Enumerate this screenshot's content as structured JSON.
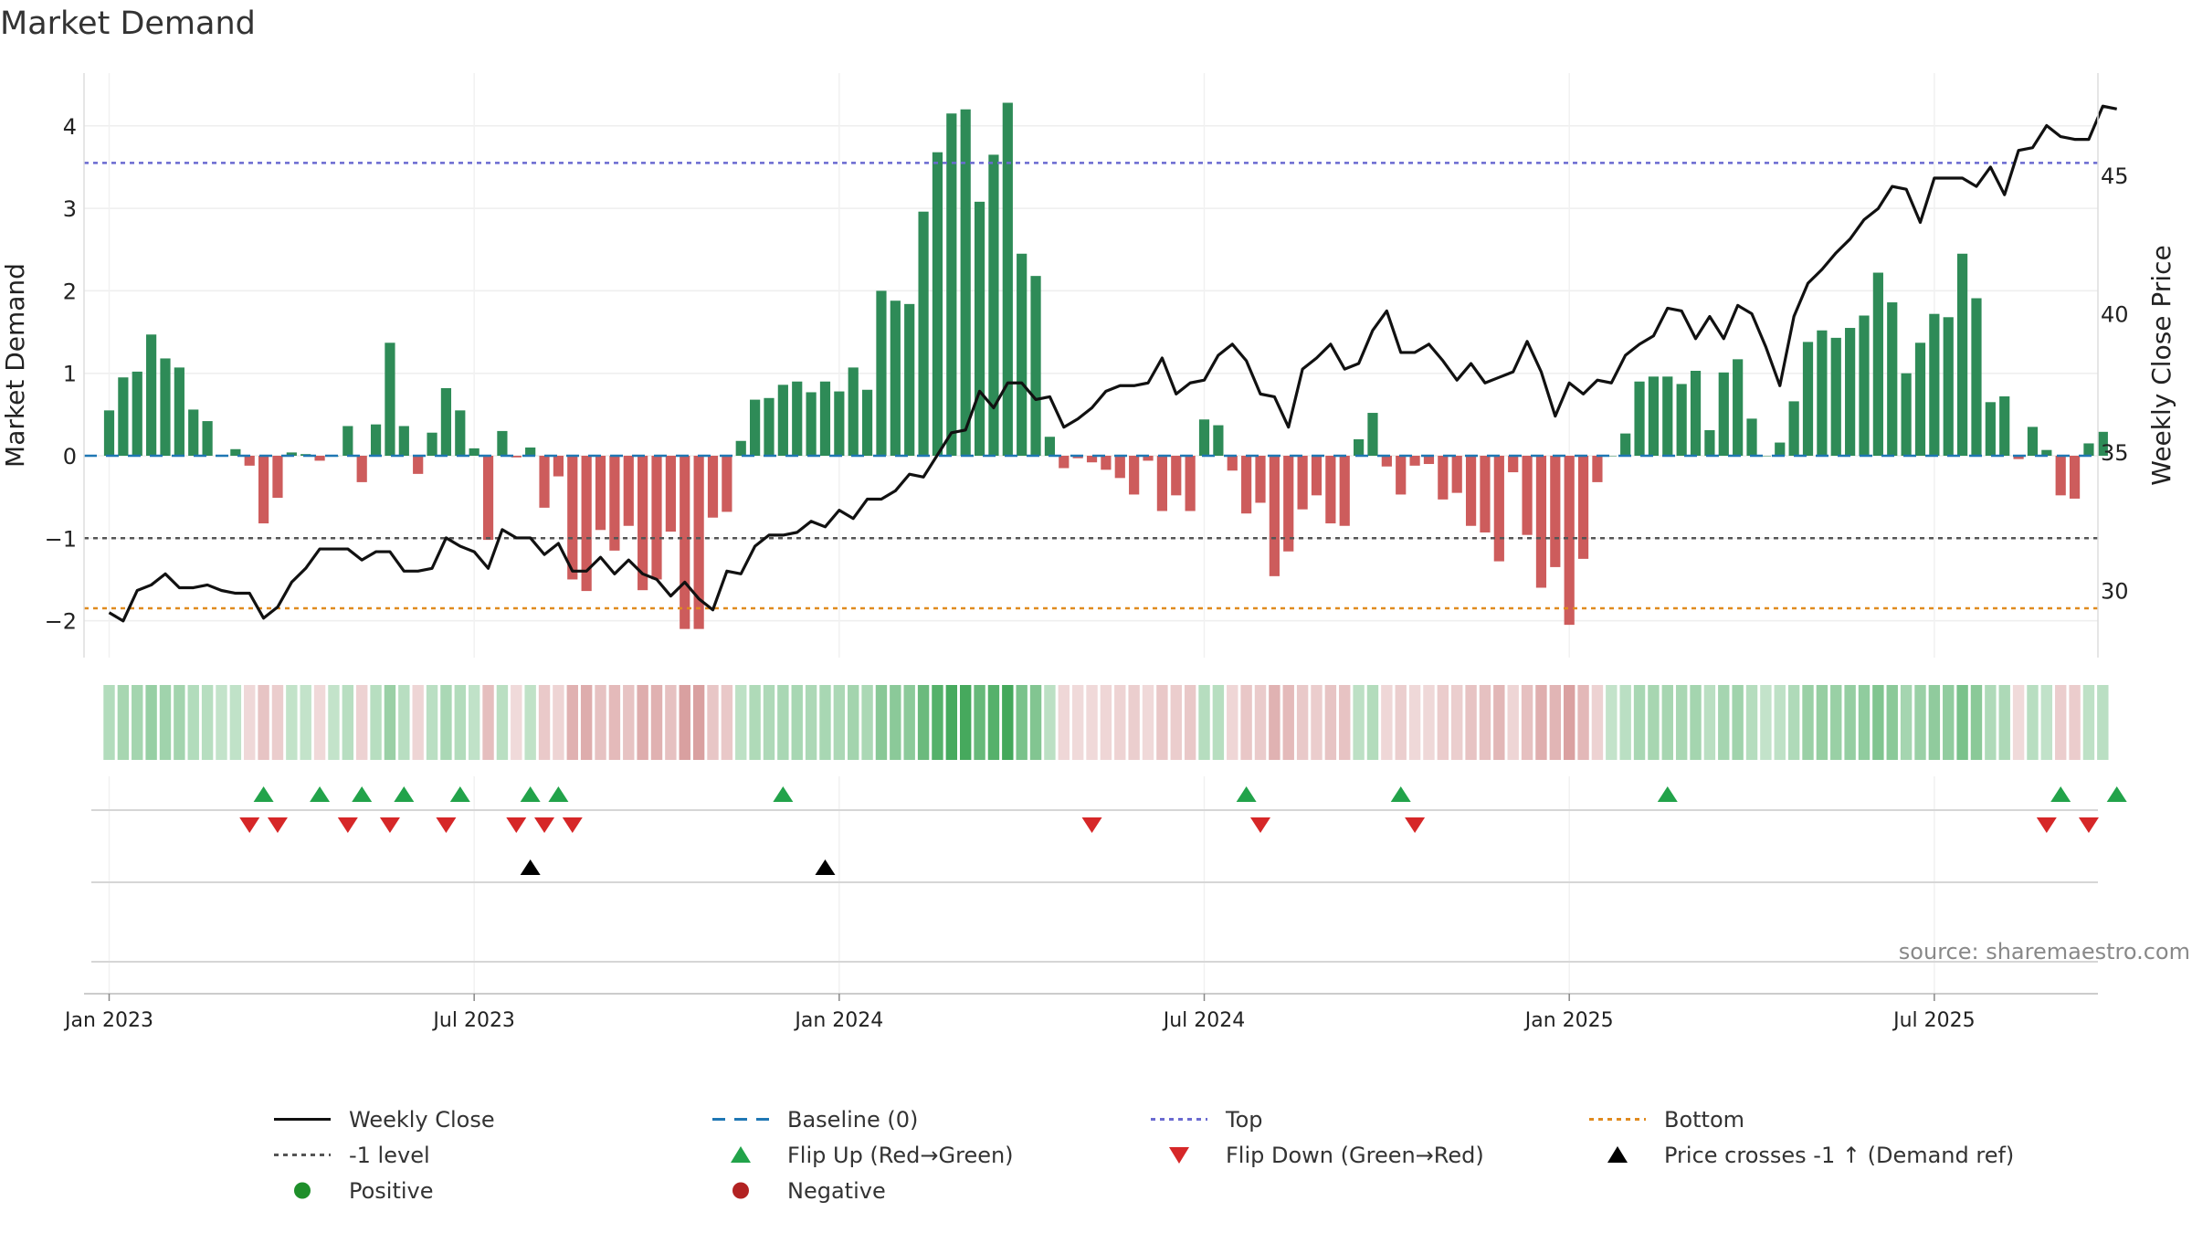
{
  "chart_data": {
    "type": "bar",
    "title": "Market Demand",
    "ylabel": "Market Demand",
    "y2label": "Weekly Close Price",
    "ylim": [
      -2.2,
      4.5
    ],
    "y2lim": [
      28.2,
      48.6
    ],
    "yticks": [
      "4",
      "3",
      "2",
      "1",
      "0",
      "−1",
      "−2"
    ],
    "y2ticks": [
      "45",
      "40",
      "35",
      "30"
    ],
    "xticks": [
      "Jan 2023",
      "Jul 2023",
      "Jan 2024",
      "Jul 2024",
      "Jan 2025",
      "Jul 2025"
    ],
    "xtick_weeks": [
      0,
      26,
      52,
      78,
      104,
      130
    ],
    "start_week_offset": -1.5,
    "reference_lines": {
      "top": 3.55,
      "minus_one": -1.0,
      "bottom": -1.85,
      "baseline": 0
    },
    "demand": [
      0.55,
      0.95,
      1.02,
      1.47,
      1.18,
      1.07,
      0.56,
      0.42,
      0.0,
      0.08,
      -0.12,
      -0.82,
      -0.51,
      0.04,
      0.02,
      -0.06,
      0.0,
      0.36,
      -0.32,
      0.38,
      1.37,
      0.36,
      -0.22,
      0.28,
      0.82,
      0.55,
      0.09,
      -1.02,
      0.3,
      -0.02,
      0.1,
      -0.63,
      -0.25,
      -1.5,
      -1.64,
      -0.9,
      -1.15,
      -0.85,
      -1.63,
      -1.5,
      -0.92,
      -2.1,
      -2.1,
      -0.75,
      -0.68,
      0.18,
      0.68,
      0.7,
      0.86,
      0.9,
      0.77,
      0.9,
      0.78,
      1.07,
      0.8,
      2.0,
      1.88,
      1.84,
      2.96,
      3.68,
      4.15,
      4.2,
      3.08,
      3.65,
      4.28,
      2.45,
      2.18,
      0.23,
      -0.15,
      -0.03,
      -0.08,
      -0.17,
      -0.27,
      -0.47,
      -0.06,
      -0.67,
      -0.48,
      -0.67,
      0.44,
      0.37,
      -0.18,
      -0.7,
      -0.57,
      -1.46,
      -1.16,
      -0.65,
      -0.48,
      -0.82,
      -0.85,
      0.2,
      0.52,
      -0.13,
      -0.47,
      -0.12,
      -0.1,
      -0.53,
      -0.45,
      -0.85,
      -0.93,
      -1.28,
      -0.2,
      -0.96,
      -1.6,
      -1.35,
      -2.05,
      -1.25,
      -0.32,
      0.0,
      0.27,
      0.9,
      0.96,
      0.96,
      0.87,
      1.03,
      0.31,
      1.01,
      1.17,
      0.45,
      0.0,
      0.16,
      0.66,
      1.38,
      1.52,
      1.43,
      1.55,
      1.7,
      2.22,
      1.86,
      1.0,
      1.37,
      1.72,
      1.68,
      2.45,
      1.91,
      0.65,
      0.72,
      -0.04,
      0.35,
      0.07,
      -0.48,
      -0.52,
      0.15,
      0.29
    ],
    "weekly_close": [
      29.2,
      28.9,
      30.0,
      30.2,
      30.6,
      30.1,
      30.1,
      30.2,
      30.0,
      29.9,
      29.9,
      29.0,
      29.4,
      30.3,
      30.8,
      31.5,
      31.5,
      31.5,
      31.1,
      31.4,
      31.4,
      30.7,
      30.7,
      30.8,
      31.9,
      31.6,
      31.4,
      30.8,
      32.2,
      31.9,
      31.9,
      31.3,
      31.7,
      30.7,
      30.7,
      31.2,
      30.6,
      31.1,
      30.6,
      30.4,
      29.8,
      30.3,
      29.7,
      29.3,
      30.7,
      30.6,
      31.6,
      32.0,
      32.0,
      32.1,
      32.5,
      32.3,
      32.9,
      32.6,
      33.3,
      33.3,
      33.6,
      34.2,
      34.1,
      34.9,
      35.7,
      35.8,
      37.2,
      36.6,
      37.5,
      37.5,
      36.9,
      37.0,
      35.9,
      36.2,
      36.6,
      37.2,
      37.4,
      37.4,
      37.5,
      38.4,
      37.1,
      37.5,
      37.6,
      38.5,
      38.9,
      38.3,
      37.1,
      37.0,
      35.9,
      38.0,
      38.4,
      38.9,
      38.0,
      38.2,
      39.4,
      40.1,
      38.6,
      38.6,
      38.9,
      38.3,
      37.6,
      38.2,
      37.5,
      37.7,
      37.9,
      39.0,
      37.9,
      36.3,
      37.5,
      37.1,
      37.6,
      37.5,
      38.5,
      38.9,
      39.2,
      40.2,
      40.1,
      39.1,
      39.9,
      39.1,
      40.3,
      40.0,
      38.8,
      37.4,
      39.9,
      41.1,
      41.6,
      42.2,
      42.7,
      43.4,
      43.8,
      44.6,
      44.5,
      43.3,
      44.9,
      44.9,
      44.9,
      44.6,
      45.3,
      44.3,
      45.9,
      46.0,
      46.8,
      46.4,
      46.3,
      46.3,
      47.5,
      47.4
    ],
    "flip_up_weeks": [
      9.5,
      13.5,
      16.5,
      19.5,
      23.5,
      28.5,
      30.5,
      46.5,
      79.5,
      90.5,
      109.5,
      137.5,
      141.5
    ],
    "flip_down_weeks": [
      8.5,
      10.5,
      15.5,
      18.5,
      22.5,
      27.5,
      29.5,
      31.5,
      68.5,
      80.5,
      91.5,
      136.5,
      139.5
    ],
    "price_cross_weeks": [
      28.5,
      49.5
    ],
    "annotation": "source: sharemaestro.com"
  },
  "legend": [
    {
      "label": "Weekly Close",
      "symbol": "line-black"
    },
    {
      "label": "Baseline (0)",
      "symbol": "dash-blue"
    },
    {
      "label": "Top",
      "symbol": "dot-purple"
    },
    {
      "label": "Bottom",
      "symbol": "dot-orange"
    },
    {
      "label": "-1 level",
      "symbol": "dot-gray"
    },
    {
      "label": "Flip Up (Red→Green)",
      "symbol": "triangle-up-green"
    },
    {
      "label": "Flip Down (Green→Red)",
      "symbol": "triangle-down-red"
    },
    {
      "label": "Price crosses -1 ↑ (Demand ref)",
      "symbol": "triangle-up-black"
    },
    {
      "label": "Positive",
      "symbol": "circle-green"
    },
    {
      "label": "Negative",
      "symbol": "circle-red"
    }
  ],
  "colors": {
    "positive": "#2e8b57",
    "negative": "#cd5c5c",
    "close": "#111111",
    "baseline": "#1f77b4",
    "top": "#6a6ad0",
    "minus_one": "#555555",
    "bottom": "#e08a1e",
    "flip_up": "#22a34a",
    "flip_down": "#d62728",
    "cross": "#000000",
    "legend_positive": "#1e8f2a",
    "legend_negative": "#b22222"
  }
}
